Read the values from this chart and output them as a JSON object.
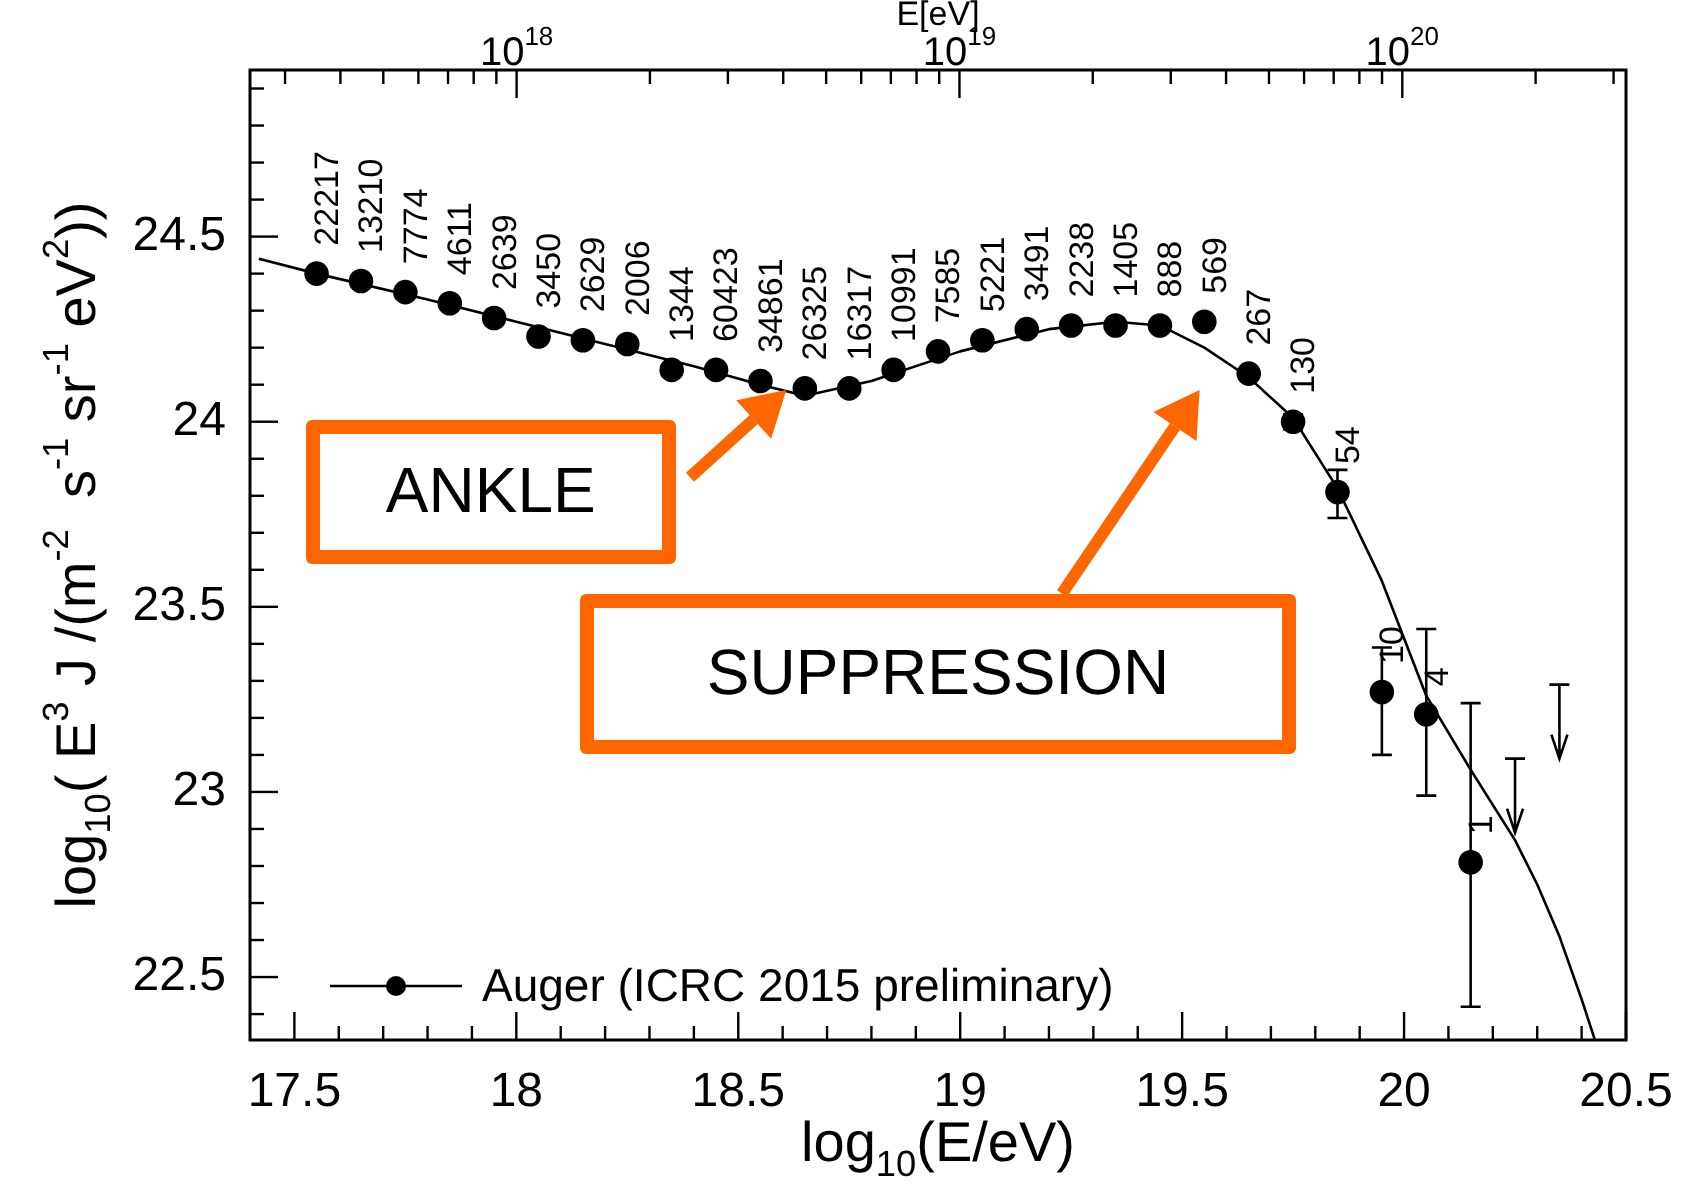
{
  "chart_data": {
    "type": "scatter",
    "x2label": "E[eV]",
    "xlabel": "log$_{10}$(E/eV)",
    "ylabel": "log$_{10}$( E$^{3}$ J /(m$^{-2}$  s$^{-1}$ sr$^{-1}$ eV$^{2}$))",
    "xlim": [
      17.4,
      20.5
    ],
    "ylim": [
      22.33,
      24.95
    ],
    "log": "x2",
    "xticks": [
      17.5,
      {
        "value": 17.6,
        "label": null
      },
      {
        "value": 17.7,
        "label": null
      },
      {
        "value": 17.8,
        "label": null
      },
      {
        "value": 17.9,
        "label": null
      },
      18,
      {
        "value": 18.1,
        "label": null
      },
      {
        "value": 18.2,
        "label": null
      },
      {
        "value": 18.3,
        "label": null
      },
      {
        "value": 18.4,
        "label": null
      },
      18.5,
      {
        "value": 18.6,
        "label": null
      },
      {
        "value": 18.7,
        "label": null
      },
      {
        "value": 18.8,
        "label": null
      },
      {
        "value": 18.9,
        "label": null
      },
      19,
      {
        "value": 19.1,
        "label": null
      },
      {
        "value": 19.2,
        "label": null
      },
      {
        "value": 19.3,
        "label": null
      },
      {
        "value": 19.4,
        "label": null
      },
      19.5,
      {
        "value": 19.6,
        "label": null
      },
      {
        "value": 19.7,
        "label": null
      },
      {
        "value": 19.8,
        "label": null
      },
      {
        "value": 19.9,
        "label": null
      },
      20,
      {
        "value": 20.1,
        "label": null
      },
      {
        "value": 20.2,
        "label": null
      },
      {
        "value": 20.3,
        "label": null
      },
      {
        "value": 20.4,
        "label": null
      },
      20.5
    ],
    "x2lim": [
      2.5e+17,
      3.2e+20
    ],
    "x2ticks": [
      {
        "value": 3e+17,
        "label": null
      },
      {
        "value": 4e+17,
        "label": null
      },
      {
        "value": 5e+17,
        "label": null
      },
      {
        "value": 6e+17,
        "label": null
      },
      {
        "value": 7e+17,
        "label": null
      },
      {
        "value": 8e+17,
        "label": null
      },
      {
        "value": 9e+17,
        "label": null
      },
      {
        "value": 1e+18,
        "label": "10$^{18}$"
      },
      {
        "value": 2e+18,
        "label": null
      },
      {
        "value": 3e+18,
        "label": null
      },
      {
        "value": 4e+18,
        "label": null
      },
      {
        "value": 5e+18,
        "label": null
      },
      {
        "value": 6e+18,
        "label": null
      },
      {
        "value": 7e+18,
        "label": null
      },
      {
        "value": 8e+18,
        "label": null
      },
      {
        "value": 9e+18,
        "label": null
      },
      {
        "value": 1e+19,
        "label": "10$^{19}$"
      },
      {
        "value": 2e+19,
        "label": null
      },
      {
        "value": 3e+19,
        "label": null
      },
      {
        "value": 4e+19,
        "label": null
      },
      {
        "value": 5e+19,
        "label": null
      },
      {
        "value": 6e+19,
        "label": null
      },
      {
        "value": 7e+19,
        "label": null
      },
      {
        "value": 8e+19,
        "label": null
      },
      {
        "value": 9e+19,
        "label": null
      },
      {
        "value": 1e+20,
        "label": "10$^{20}$"
      },
      {
        "value": 2e+20,
        "label": null
      },
      {
        "value": 3e+20,
        "label": null
      }
    ],
    "yticks": [
      {
        "value": 22.4,
        "label": null
      },
      22.5,
      {
        "value": 22.6,
        "label": null
      },
      {
        "value": 22.7,
        "label": null
      },
      {
        "value": 22.8,
        "label": null
      },
      {
        "value": 22.9,
        "label": null
      },
      23,
      {
        "value": 23.1,
        "label": null
      },
      {
        "value": 23.2,
        "label": null
      },
      {
        "value": 23.3,
        "label": null
      },
      {
        "value": 23.4,
        "label": null
      },
      23.5,
      {
        "value": 23.6,
        "label": null
      },
      {
        "value": 23.7,
        "label": null
      },
      {
        "value": 23.8,
        "label": null
      },
      {
        "value": 23.9,
        "label": null
      },
      24,
      {
        "value": 24.1,
        "label": null
      },
      {
        "value": 24.2,
        "label": null
      },
      {
        "value": 24.3,
        "label": null
      },
      {
        "value": 24.4,
        "label": null
      },
      24.5,
      {
        "value": 24.6,
        "label": null
      },
      {
        "value": 24.7,
        "label": null
      },
      {
        "value": 24.8,
        "label": null
      },
      {
        "value": 24.9,
        "label": null
      }
    ],
    "legend": "bottom left",
    "series": [
      {
        "name": "Auger (ICRC 2015 preliminary)",
        "marker": "circle",
        "color": "#000000",
        "x": [
          17.55,
          17.65,
          17.75,
          17.85,
          17.95,
          18.05,
          18.15,
          18.25,
          18.35,
          18.45,
          18.55,
          18.65,
          18.75,
          18.85,
          18.95,
          19.05,
          19.15,
          19.25,
          19.35,
          19.45,
          19.55,
          19.65,
          19.75,
          19.85,
          19.95,
          20.05,
          20.15
        ],
        "values": [
          24.4,
          24.38,
          24.35,
          24.32,
          24.28,
          24.23,
          24.22,
          24.21,
          24.14,
          24.14,
          24.11,
          24.09,
          24.09,
          24.14,
          24.19,
          24.22,
          24.25,
          24.26,
          24.26,
          24.26,
          24.27,
          24.13,
          24.0,
          23.81,
          23.27,
          23.21,
          22.81
        ],
        "errors": [
          null,
          null,
          null,
          null,
          null,
          null,
          null,
          null,
          null,
          null,
          null,
          null,
          null,
          null,
          null,
          null,
          null,
          null,
          null,
          null,
          null,
          null,
          0.02,
          [
            23.74,
            23.87
          ],
          [
            23.1,
            23.39
          ],
          [
            22.99,
            23.44
          ],
          [
            22.42,
            23.24
          ]
        ]
      },
      {
        "type": "line",
        "marker": "none",
        "color": "#000000",
        "x": [
          17.42,
          17.55,
          17.8,
          18.0,
          18.2,
          18.4,
          18.55,
          18.65,
          18.8,
          19.0,
          19.2,
          19.35,
          19.45,
          19.55,
          19.65,
          19.75,
          19.85,
          19.95,
          20.05,
          20.15,
          20.25,
          20.3,
          20.35,
          20.4,
          20.43
        ],
        "values": [
          24.44,
          24.4,
          24.33,
          24.27,
          24.21,
          24.15,
          24.1,
          24.07,
          24.11,
          24.19,
          24.25,
          24.27,
          24.26,
          24.2,
          24.12,
          24.01,
          23.82,
          23.57,
          23.26,
          23.06,
          22.87,
          22.75,
          22.61,
          22.44,
          22.33
        ]
      },
      {
        "color": "#000000",
        "x": [
          20.25,
          20.35
        ],
        "values": [
          22.92,
          23.12
        ],
        "errors": [
          [
            22.89,
            23.09
          ],
          [
            23.09,
            23.29
          ]
        ]
      }
    ],
    "annotations": [
      "ANKLE",
      "SUPPRESSION",
      {
        "text": "22217",
        "x": 17.55,
        "y": 24.4
      },
      {
        "text": "13210",
        "x": 17.65,
        "y": 24.38
      },
      {
        "text": "7774",
        "x": 17.75,
        "y": 24.35
      },
      {
        "text": "4611",
        "x": 17.85,
        "y": 24.32
      },
      {
        "text": "2639",
        "x": 17.95,
        "y": 24.28
      },
      {
        "text": "3450",
        "x": 18.05,
        "y": 24.23
      },
      {
        "text": "2629",
        "x": 18.15,
        "y": 24.22
      },
      {
        "text": "2006",
        "x": 18.25,
        "y": 24.21
      },
      {
        "text": "1344",
        "x": 18.35,
        "y": 24.14
      },
      {
        "text": "60423",
        "x": 18.45,
        "y": 24.14
      },
      {
        "text": "34861",
        "x": 18.55,
        "y": 24.11
      },
      {
        "text": "26325",
        "x": 18.65,
        "y": 24.09
      },
      {
        "text": "16317",
        "x": 18.75,
        "y": 24.09
      },
      {
        "text": "10991",
        "x": 18.85,
        "y": 24.14
      },
      {
        "text": "7585",
        "x": 18.95,
        "y": 24.19
      },
      {
        "text": "5221",
        "x": 19.05,
        "y": 24.22
      },
      {
        "text": "3491",
        "x": 19.15,
        "y": 24.25
      },
      {
        "text": "2238",
        "x": 19.25,
        "y": 24.26
      },
      {
        "text": "1405",
        "x": 19.35,
        "y": 24.26
      },
      {
        "text": "888",
        "x": 19.45,
        "y": 24.26
      },
      {
        "text": "569",
        "x": 19.55,
        "y": 24.27
      },
      {
        "text": "267",
        "x": 19.65,
        "y": 24.13
      },
      {
        "text": "130",
        "x": 19.75,
        "y": 24.0
      },
      {
        "text": "54",
        "x": 19.85,
        "y": 23.81
      },
      {
        "text": "10",
        "x": 19.95,
        "y": 23.27
      },
      {
        "text": "4",
        "x": 20.05,
        "y": 23.21
      },
      {
        "text": "1",
        "x": 20.15,
        "y": 22.81
      }
    ]
  }
}
